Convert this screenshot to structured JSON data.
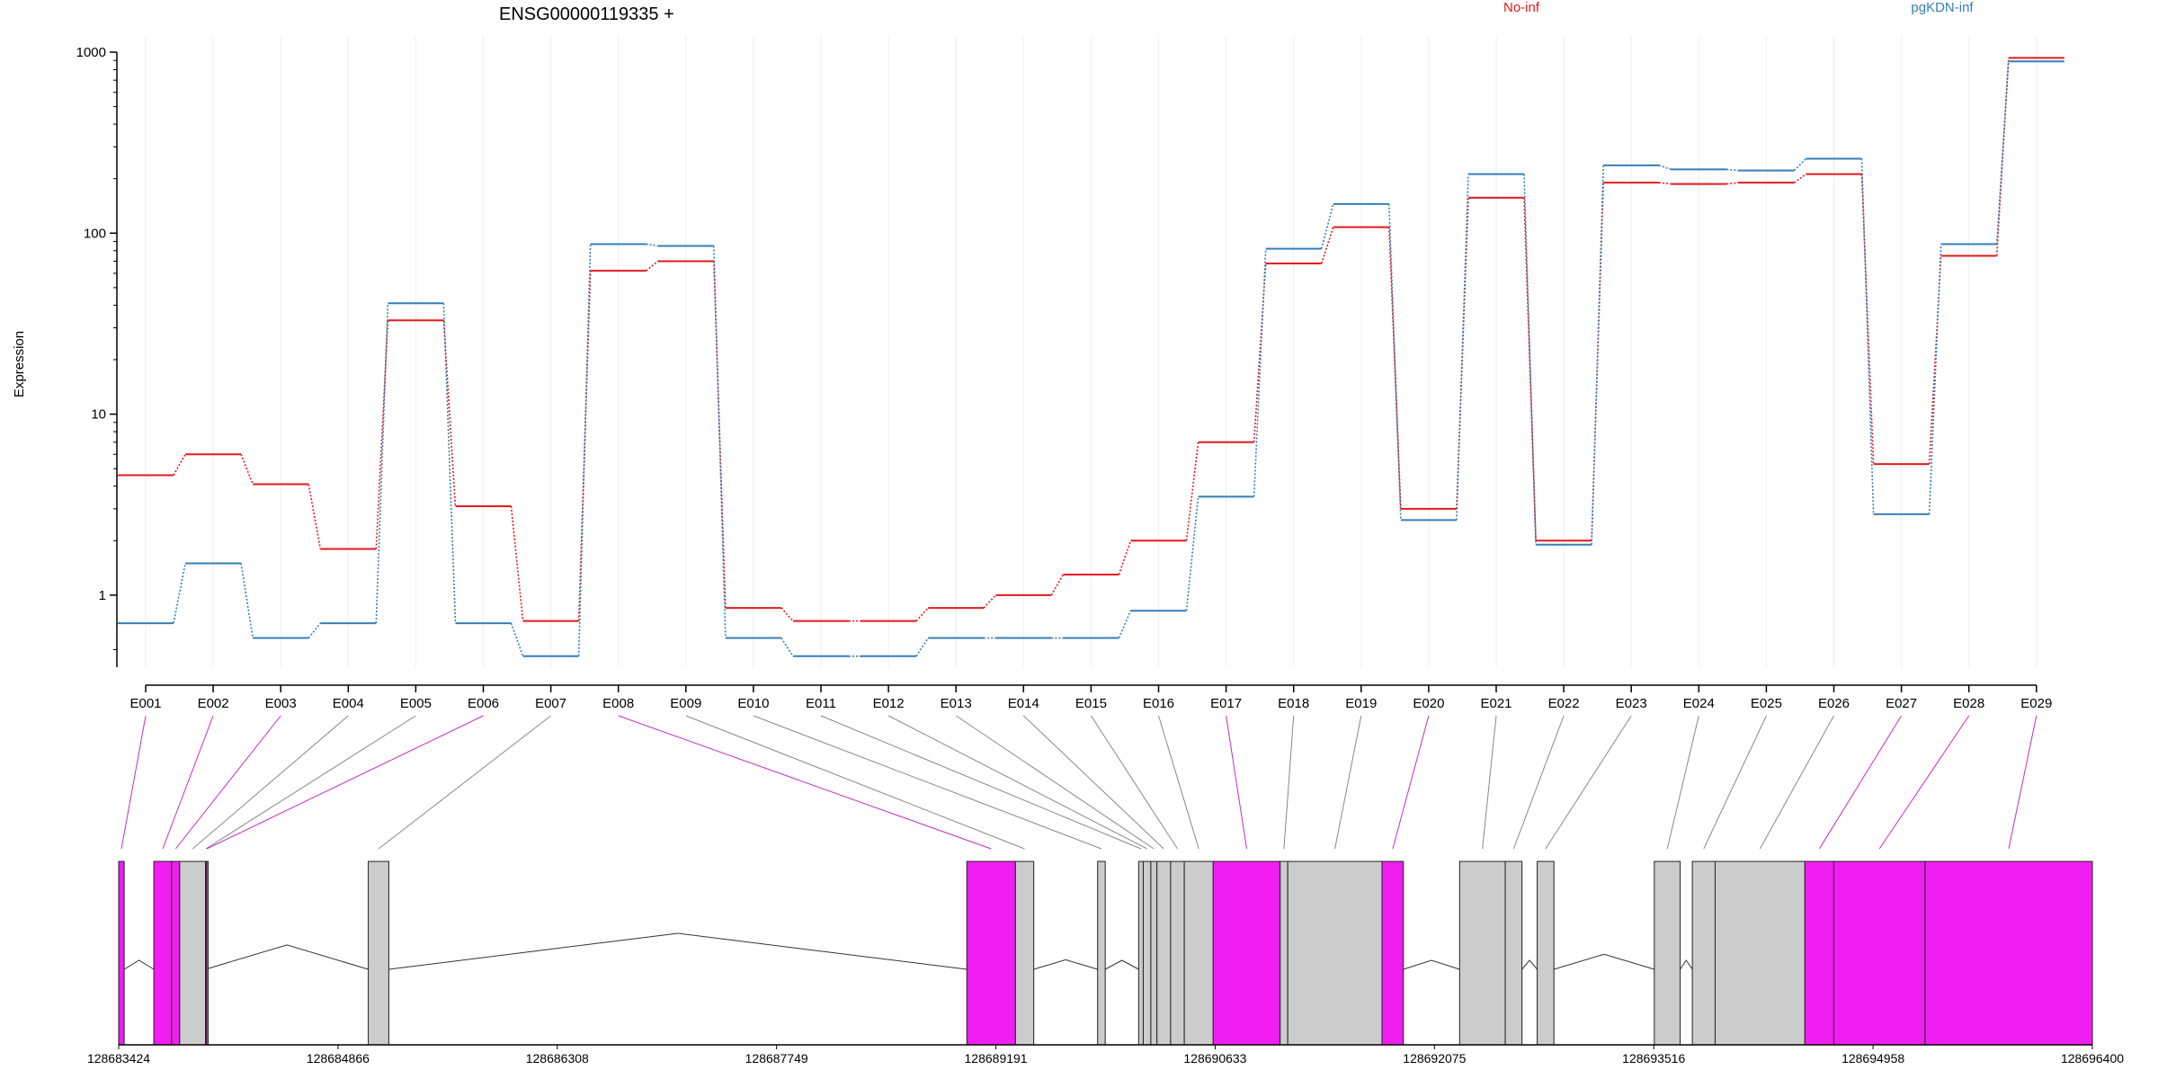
{
  "chart_data": {
    "type": "line",
    "title": "ENSG00000119335 +",
    "ylabel": "Expression",
    "y_scale": "log",
    "ylim": [
      0.4,
      1000
    ],
    "y_ticks": [
      {
        "value": 1,
        "label": "1"
      },
      {
        "value": 10,
        "label": "10"
      },
      {
        "value": 100,
        "label": "100"
      },
      {
        "value": 1000,
        "label": "1000"
      }
    ],
    "grid": "vertical-light",
    "legend_placement": "top",
    "categories": [
      "E001",
      "E002",
      "E003",
      "E004",
      "E005",
      "E006",
      "E007",
      "E008",
      "E009",
      "E010",
      "E011",
      "E012",
      "E013",
      "E014",
      "E015",
      "E016",
      "E017",
      "E018",
      "E019",
      "E020",
      "E021",
      "E022",
      "E023",
      "E024",
      "E025",
      "E026",
      "E027",
      "E028",
      "E029"
    ],
    "series": [
      {
        "name": "No-inf",
        "color": "#e41a1c",
        "values": [
          4.6,
          6.0,
          4.1,
          1.8,
          33,
          3.1,
          0.72,
          62,
          70,
          0.85,
          0.72,
          0.72,
          0.85,
          1.0,
          1.3,
          2.0,
          7.0,
          68,
          108,
          3.0,
          157,
          2.0,
          190,
          187,
          190,
          212,
          5.3,
          75,
          930
        ]
      },
      {
        "name": "pgKDN-inf",
        "color": "#377eb8",
        "values": [
          0.7,
          1.5,
          0.58,
          0.7,
          41,
          0.7,
          0.46,
          87,
          85,
          0.58,
          0.46,
          0.46,
          0.58,
          0.58,
          0.58,
          0.82,
          3.5,
          82,
          145,
          2.6,
          212,
          1.9,
          237,
          225,
          222,
          258,
          2.8,
          87,
          890
        ]
      }
    ],
    "genomic_axis": {
      "tick_labels": [
        "128683424",
        "128684866",
        "128686308",
        "128687749",
        "128689191",
        "128690633",
        "128692075",
        "128693516",
        "128694958",
        "128696400"
      ],
      "range": [
        128683424,
        128696400
      ]
    },
    "exons": [
      {
        "id": "E001",
        "start": 128683424,
        "end": 128683460,
        "highlight": true
      },
      {
        "id": "E002",
        "start": 128683655,
        "end": 128683772,
        "highlight": true
      },
      {
        "id": "E003",
        "start": 128683772,
        "end": 128683825,
        "highlight": true
      },
      {
        "id": "E004",
        "start": 128683825,
        "end": 128683995,
        "highlight": false
      },
      {
        "id": "E005",
        "start": 128683995,
        "end": 128684000,
        "highlight": false
      },
      {
        "id": "E006",
        "start": 128684000,
        "end": 128684005,
        "highlight": true
      },
      {
        "id": "E007",
        "start": 128685065,
        "end": 128685200,
        "highlight": false
      },
      {
        "id": "E008",
        "start": 128689000,
        "end": 128689320,
        "highlight": true
      },
      {
        "id": "E009",
        "start": 128689320,
        "end": 128689440,
        "highlight": false
      },
      {
        "id": "E010",
        "start": 128689860,
        "end": 128689910,
        "highlight": false
      },
      {
        "id": "E011",
        "start": 128690130,
        "end": 128690160,
        "highlight": false
      },
      {
        "id": "E012",
        "start": 128690160,
        "end": 128690210,
        "highlight": false
      },
      {
        "id": "E013",
        "start": 128690210,
        "end": 128690250,
        "highlight": false
      },
      {
        "id": "E014",
        "start": 128690250,
        "end": 128690340,
        "highlight": false
      },
      {
        "id": "E015",
        "start": 128690340,
        "end": 128690430,
        "highlight": false
      },
      {
        "id": "E016",
        "start": 128690430,
        "end": 128690620,
        "highlight": false
      },
      {
        "id": "E017",
        "start": 128690620,
        "end": 128691060,
        "highlight": true
      },
      {
        "id": "E018",
        "start": 128691060,
        "end": 128691110,
        "highlight": false
      },
      {
        "id": "E019",
        "start": 128691110,
        "end": 128691730,
        "highlight": false
      },
      {
        "id": "E020",
        "start": 128691730,
        "end": 128691870,
        "highlight": true
      },
      {
        "id": "E021",
        "start": 128692240,
        "end": 128692540,
        "highlight": false
      },
      {
        "id": "E022",
        "start": 128692540,
        "end": 128692650,
        "highlight": false
      },
      {
        "id": "E023",
        "start": 128692750,
        "end": 128692860,
        "highlight": false
      },
      {
        "id": "E024",
        "start": 128693520,
        "end": 128693690,
        "highlight": false
      },
      {
        "id": "E025",
        "start": 128693770,
        "end": 128693920,
        "highlight": false
      },
      {
        "id": "E026",
        "start": 128693920,
        "end": 128694510,
        "highlight": false
      },
      {
        "id": "E027",
        "start": 128694510,
        "end": 128694700,
        "highlight": true
      },
      {
        "id": "E028",
        "start": 128694700,
        "end": 128695300,
        "highlight": true
      },
      {
        "id": "E029",
        "start": 128695300,
        "end": 128696400,
        "highlight": true
      }
    ],
    "introns": [
      [
        128683460,
        128683655
      ],
      [
        128683995,
        128685065
      ],
      [
        128685200,
        128689000
      ],
      [
        128689440,
        128689860
      ],
      [
        128689910,
        128690130
      ],
      [
        128691110,
        128691130
      ],
      [
        128691870,
        128692240
      ],
      [
        128692540,
        128692560
      ],
      [
        128692650,
        128692750
      ],
      [
        128692860,
        128693520
      ],
      [
        128693690,
        128693770
      ]
    ],
    "colors": {
      "highlight_exon": "#f01ef0",
      "normal_exon": "#cccccc",
      "link_highlight": "#c030c0",
      "link_normal": "#888888"
    }
  }
}
